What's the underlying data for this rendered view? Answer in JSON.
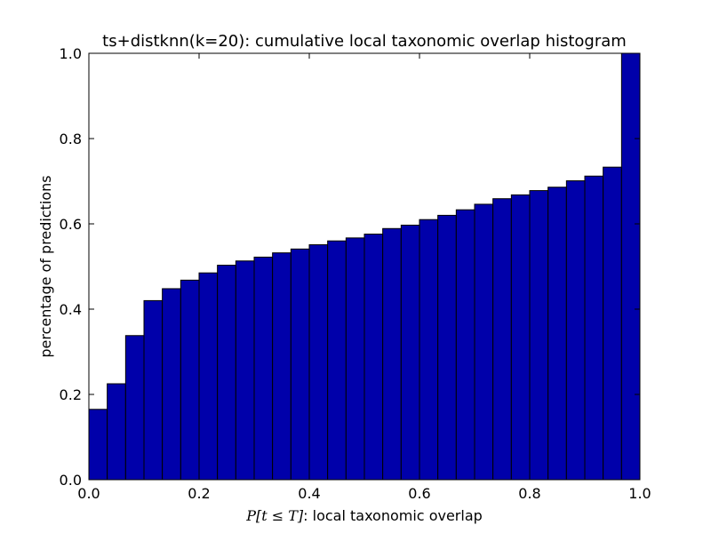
{
  "chart_data": {
    "type": "bar",
    "title": "ts+distknn(k=20): cumulative local taxonomic overlap histogram",
    "xlabel_math": "P[t ≤ T]",
    "xlabel_text": ": local taxonomic overlap",
    "ylabel": "percentage of predictions",
    "xlim": [
      0.0,
      1.0
    ],
    "ylim": [
      0.0,
      1.0
    ],
    "xticks": [
      "0.0",
      "0.2",
      "0.4",
      "0.6",
      "0.8",
      "1.0"
    ],
    "yticks": [
      "0.0",
      "0.2",
      "0.4",
      "0.6",
      "0.8",
      "1.0"
    ],
    "grid": false,
    "bar_color": "#0000aa",
    "bin_width": 0.0333,
    "bins_start": [
      0.0,
      0.0333,
      0.0667,
      0.1,
      0.1333,
      0.1667,
      0.2,
      0.2333,
      0.2667,
      0.3,
      0.3333,
      0.3667,
      0.4,
      0.4333,
      0.4667,
      0.5,
      0.5333,
      0.5667,
      0.6,
      0.6333,
      0.6667,
      0.7,
      0.7333,
      0.7667,
      0.8,
      0.8333,
      0.8667,
      0.9,
      0.9333,
      0.9667
    ],
    "values": [
      0.165,
      0.225,
      0.338,
      0.42,
      0.448,
      0.468,
      0.485,
      0.503,
      0.513,
      0.522,
      0.532,
      0.541,
      0.551,
      0.56,
      0.567,
      0.576,
      0.589,
      0.597,
      0.61,
      0.62,
      0.633,
      0.646,
      0.659,
      0.668,
      0.678,
      0.686,
      0.701,
      0.712,
      0.733,
      1.0
    ]
  }
}
